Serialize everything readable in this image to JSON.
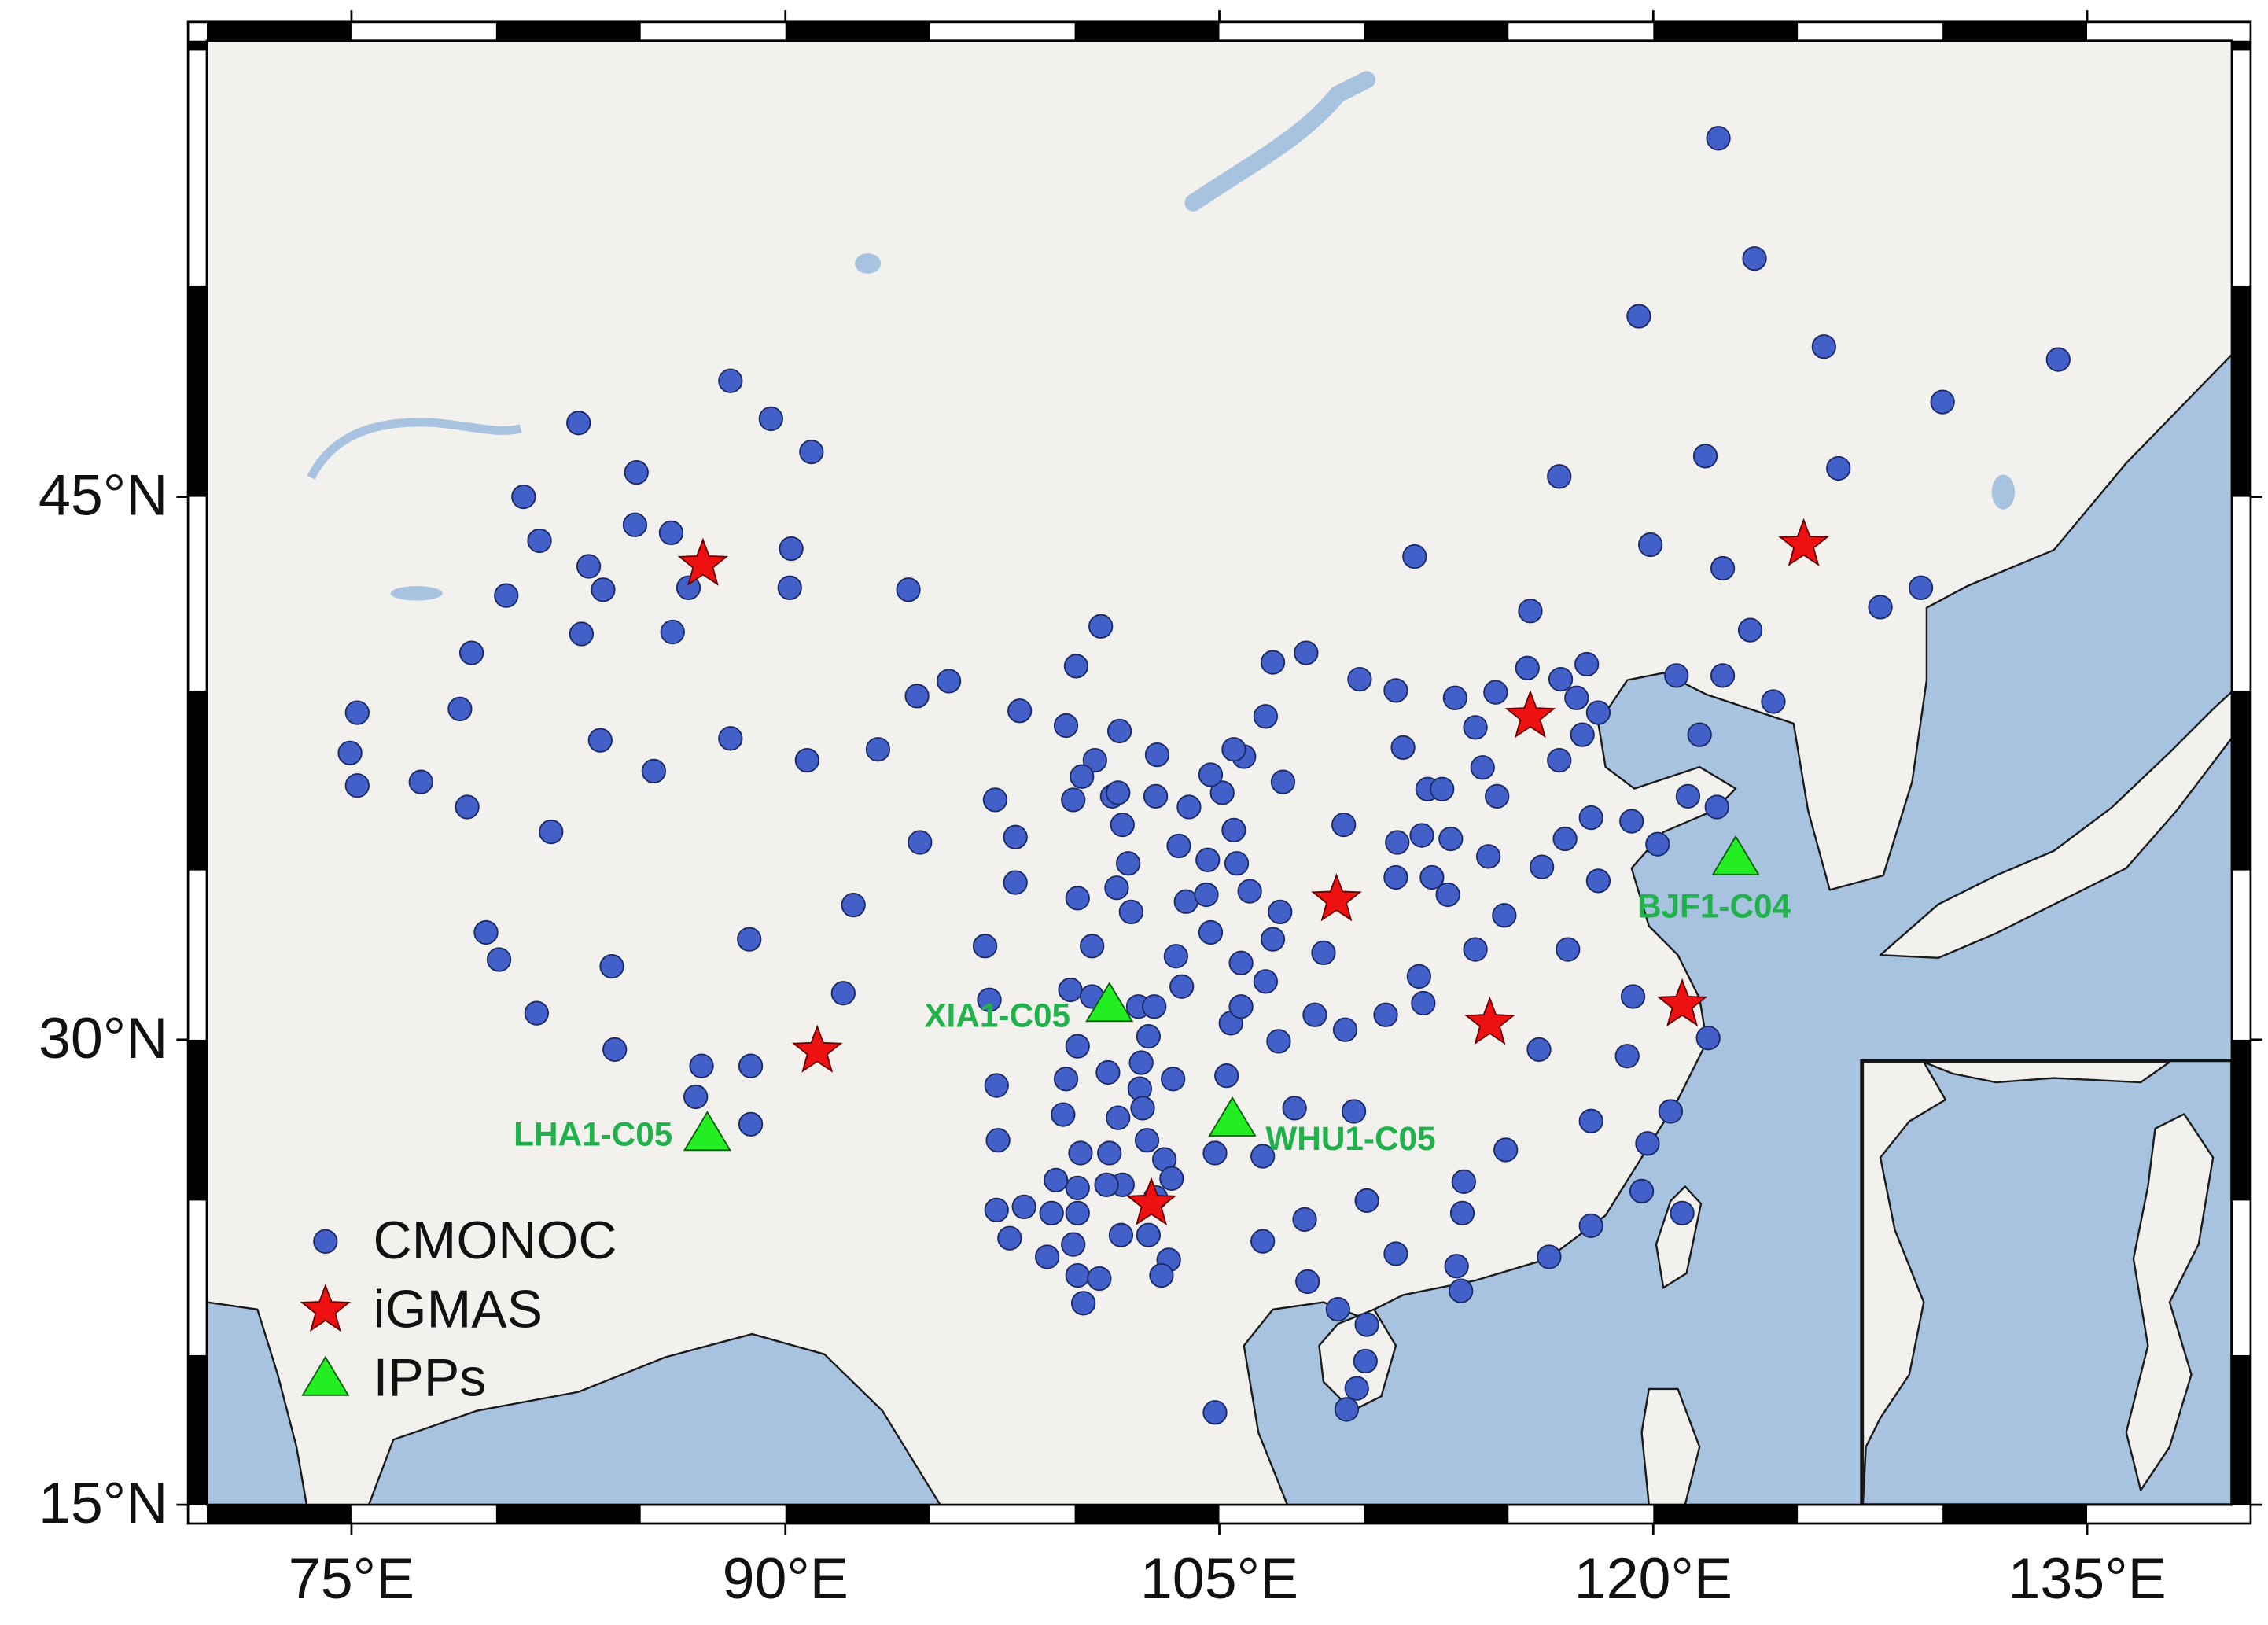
{
  "chart_data": {
    "type": "map",
    "projection": "mercator",
    "xlim": [
      70,
      140
    ],
    "ylim": [
      15,
      55.2
    ],
    "xticks": [
      {
        "value": 75,
        "label": "75°E"
      },
      {
        "value": 90,
        "label": "90°E"
      },
      {
        "value": 105,
        "label": "105°E"
      },
      {
        "value": 120,
        "label": "120°E"
      },
      {
        "value": 135,
        "label": "135°E"
      }
    ],
    "yticks": [
      {
        "value": 15,
        "label": "15°N"
      },
      {
        "value": 30,
        "label": "30°N"
      },
      {
        "value": 45,
        "label": "45°N"
      }
    ],
    "legend": "lower left",
    "series": [
      {
        "name": "CMONOC",
        "marker": "circle",
        "color": "#4260c8",
        "x": [
          122.25,
          123.5,
          119.5,
          125.9,
          134,
          130,
          121.8,
          126.4,
          116.75,
          119.9,
          111.75,
          122.4,
          129.25,
          127.85,
          115.75,
          123.35,
          115.65,
          117.7,
          116.8,
          120.8,
          122.4,
          113.15,
          114.55,
          117.35,
          118.1,
          113.85,
          117.55,
          121.6,
          124.15,
          109.85,
          111.1,
          106.85,
          108,
          111.35,
          116.75,
          114.1,
          112.2,
          112.7,
          114.6,
          117.85,
          119.25,
          121.2,
          122.2,
          120.15,
          109.3,
          107.2,
          111.15,
          112,
          113,
          116.95,
          116.15,
          118.1,
          114.3,
          111.1,
          112.35,
          112.9,
          114.85,
          108.6,
          111.9,
          113.85,
          117.05,
          119.3,
          108.3,
          110.75,
          112.05,
          109.35,
          116.05,
          119.1,
          121.9,
          117.85,
          120.6,
          119.8,
          114.9,
          119.6,
          121,
          117.85,
          116.4,
          113.4,
          113.45,
          113.2,
          113.35,
          111.1,
          110.1,
          109.65,
          107.95,
          108.05,
          106.5,
          106.5,
          109.1,
          110.1,
          110.05,
          109.75,
          109.4,
          104.85,
          107.05,
          107.6,
          104.85,
          105.25,
          105.4,
          105.75,
          105.75,
          106.85,
          106.6,
          107.1,
          106.05,
          105.6,
          104.6,
          105.5,
          105.1,
          105.85,
          105.5,
          106.6,
          104.7,
          103.95,
          103.6,
          103.85,
          103.5,
          103.7,
          104.7,
          104.55,
          102.8,
          102.85,
          101.65,
          101.55,
          100.7,
          100.25,
          99.95,
          101.3,
          101.85,
          101.95,
          100.1,
          100.6,
          99.85,
          100.6,
          102.2,
          102.55,
          101.15,
          102.3,
          102.25,
          102.35,
          103.4,
          101.5,
          101.2,
          102.5,
          103.1,
          103.35,
          102.8,
          101.65,
          101.1,
          100.2,
          99.6,
          99.7,
          100.1,
          100.1,
          100.1,
          99.35,
          99.95,
          99.2,
          98.25,
          97.75,
          99.05,
          100.1,
          100.85,
          100.3,
          101.6,
          102.55,
          103.25,
          103,
          97.3,
          97.35,
          97.3,
          97.05,
          96.9,
          97.95,
          97.95,
          97.25,
          98.1,
          99.7,
          100.05,
          100.9,
          101.5,
          101.45,
          102.75,
          95.65,
          94.55,
          93.2,
          94.65,
          92.35,
          92,
          94.25,
          90.2,
          90.15,
          90.9,
          89.5,
          88.1,
          82.85,
          80.95,
          84.85,
          81.5,
          84.8,
          86.05,
          83.2,
          83.7,
          80.35,
          82.95,
          86.1,
          79.15,
          78.75,
          75.2,
          74.95,
          75.2,
          77.4,
          79,
          81.9,
          83.6,
          85.45,
          88.1,
          90.75,
          79.65,
          80.1,
          84,
          88.75,
          81.4,
          84.1,
          87.1,
          88.8,
          86.9,
          88.8,
          86.65
        ],
        "y": [
          53.2,
          50.6,
          49.3,
          48.6,
          48.3,
          47.3,
          46,
          45.7,
          45.5,
          43.8,
          43.5,
          43.2,
          42.7,
          42.2,
          42.1,
          41.6,
          40.6,
          40.7,
          40.3,
          40.4,
          40.4,
          39.8,
          39.95,
          39.8,
          39.4,
          39,
          38.8,
          38.8,
          39.7,
          40.3,
          40,
          40.75,
          41,
          38.45,
          38.1,
          37.9,
          37.3,
          37.3,
          37.1,
          36.5,
          36.4,
          37.1,
          36.8,
          35.75,
          36.3,
          37.5,
          35.8,
          36,
          35.9,
          35.9,
          35.1,
          34.7,
          35.4,
          34.8,
          34.8,
          34.3,
          33.7,
          32.6,
          31.9,
          32.7,
          32.7,
          31.3,
          30.75,
          30.75,
          31.1,
          30.3,
          29.7,
          29.5,
          30.05,
          27.5,
          27.8,
          26.8,
          26.6,
          25.3,
          24.6,
          24.2,
          23.2,
          24.6,
          25.6,
          22.9,
          22.1,
          23.3,
          25,
          27.8,
          24.4,
          22.4,
          23.7,
          26.4,
          21.5,
          21,
          19.8,
          18.9,
          18.2,
          18.1,
          29.95,
          27.9,
          26.5,
          28.9,
          30.5,
          31,
          32.3,
          33,
          31.75,
          33.8,
          34.4,
          35.2,
          35.3,
          36.15,
          37.2,
          38.2,
          38.4,
          39.3,
          37.7,
          36.8,
          35.7,
          34.1,
          32.5,
          31.6,
          33.2,
          34.3,
          37.1,
          38.25,
          36.3,
          38.9,
          38.1,
          37.65,
          37,
          37.1,
          35.2,
          33.8,
          34.2,
          32.8,
          31.5,
          31.3,
          31,
          30.1,
          29,
          29.3,
          28.5,
          27.9,
          28.8,
          27.6,
          26.5,
          26.9,
          26.3,
          25.7,
          25.1,
          25.5,
          25.5,
          26.5,
          27.7,
          28.8,
          29.8,
          25.4,
          24.6,
          25.65,
          23.6,
          24.6,
          24.8,
          23.8,
          23.2,
          22.6,
          22.5,
          21.7,
          23.9,
          23.9,
          23.1,
          22.6,
          24.7,
          26.9,
          28.6,
          31.2,
          32.8,
          34.65,
          35.95,
          37,
          39.45,
          39.05,
          40.65,
          41.7,
          37.2,
          34.5,
          31,
          40.25,
          39.85,
          38.4,
          35.8,
          34,
          31.4,
          42.65,
          43.7,
          42.7,
          46.1,
          46.9,
          47.8,
          46.8,
          45,
          45.6,
          43.9,
          44.3,
          44.1,
          43.25,
          42.65,
          42.5,
          41.5,
          41.55,
          41,
          39.5,
          39.4,
          38.3,
          37.4,
          37.5,
          36.8,
          36.1,
          38.65,
          37.8,
          38.7,
          38.1,
          33.2,
          32.4,
          32.2,
          33,
          30.8,
          29.7,
          29.2,
          29.2,
          28.25,
          27.4,
          42.7
        ]
      },
      {
        "name": "iGMAS",
        "marker": "star",
        "color": "#ee1111",
        "x": [
          87.15,
          125.2,
          115.75,
          109.05,
          121,
          114.35,
          91.1,
          102.65
        ],
        "y": [
          43.3,
          43.8,
          39.3,
          34.15,
          31.05,
          30.5,
          29.65,
          24.9
        ]
      },
      {
        "name": "IPPs",
        "marker": "triangle",
        "color": "#22ee22",
        "labels": [
          "BJF1-C04",
          "XIA1-C05",
          "WHU1-C05",
          "LHA1-C05"
        ],
        "x": [
          122.85,
          101.2,
          105.45,
          87.3
        ],
        "y": [
          35.35,
          31.05,
          27.55,
          27.1
        ]
      }
    ]
  }
}
